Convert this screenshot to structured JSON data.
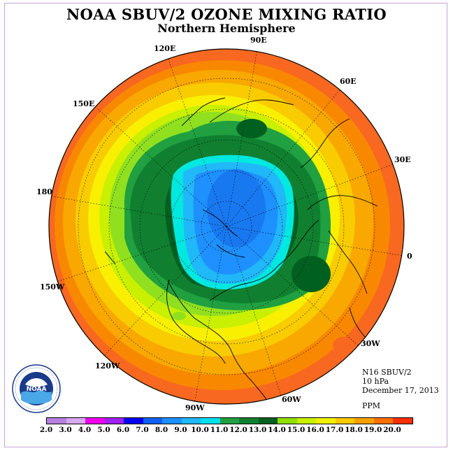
{
  "title": "NOAA SBUV/2 OZONE MIXING RATIO",
  "subtitle": "Northern Hemisphere",
  "longitude_labels": [
    "90E",
    "60E",
    "30E",
    "0",
    "30W",
    "60W",
    "90W",
    "120W",
    "150W",
    "180",
    "150E",
    "120E"
  ],
  "info": {
    "instrument": "N16 SBUV/2",
    "level": "10 hPa",
    "date": "December 17, 2013",
    "units": "PPM"
  },
  "colorbar": {
    "ticks": [
      "2.0",
      "3.0",
      "4.0",
      "5.0",
      "6.0",
      "7.0",
      "8.0",
      "9.0",
      "10.0",
      "11.0",
      "12.0",
      "13.0",
      "14.0",
      "15.0",
      "16.0",
      "17.0",
      "18.0",
      "19.0",
      "20.0"
    ],
    "colors": [
      "#b87fe0",
      "#d8a8f0",
      "#ee00ee",
      "#a020f0",
      "#0000ee",
      "#1060f0",
      "#1e90ff",
      "#20b8f8",
      "#00e0f0",
      "#20a040",
      "#108030",
      "#006020",
      "#90e000",
      "#c8f000",
      "#f0f000",
      "#f8c800",
      "#f8a000",
      "#f87000",
      "#f83000"
    ]
  },
  "logo_text": "NOAA",
  "logo_ring_text": "NATIONAL OCEANIC AND ATMOSPHERIC ADMINISTRATION · U.S. DEPARTMENT OF COMMERCE"
}
